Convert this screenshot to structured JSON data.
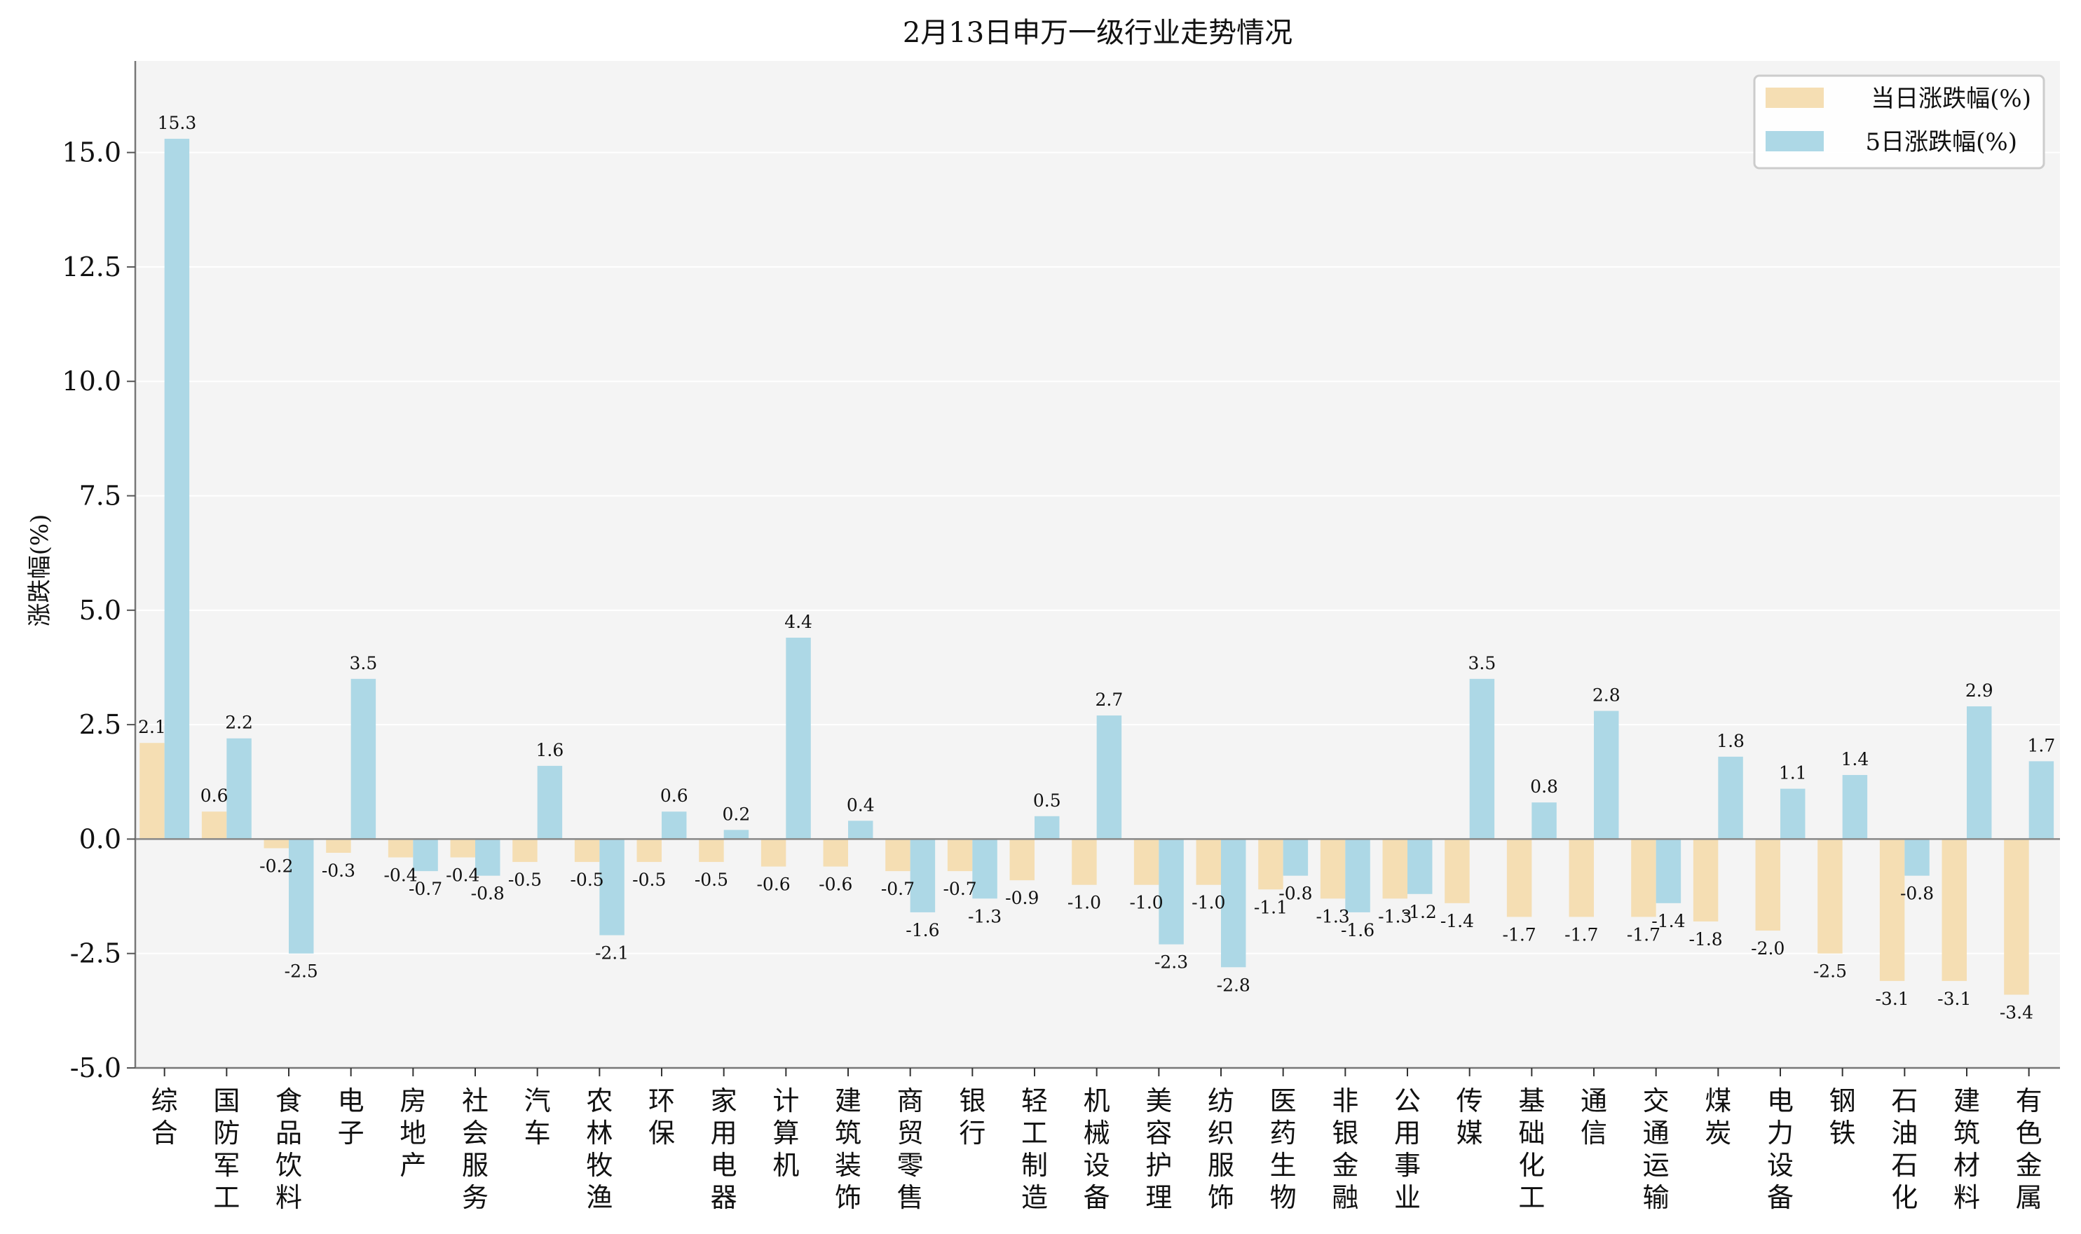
{
  "chart_data": {
    "type": "bar",
    "title": "2月13日申万一级行业走势情况",
    "xlabel": "",
    "ylabel": "涨跌幅(%)",
    "ylim": [
      -5,
      17
    ],
    "yticks": [
      "-5.0",
      "-2.5",
      "0.0",
      "2.5",
      "5.0",
      "7.5",
      "10.0",
      "12.5",
      "15.0"
    ],
    "grid": true,
    "legend_position": "top-right",
    "categories": [
      "综合",
      "国防军工",
      "食品饮料",
      "电子",
      "房地产",
      "社会服务",
      "汽车",
      "农林牧渔",
      "环保",
      "家用电器",
      "计算机",
      "建筑装饰",
      "商贸零售",
      "银行",
      "轻工制造",
      "机械设备",
      "美容护理",
      "纺织服饰",
      "医药生物",
      "非银金融",
      "公用事业",
      "传媒",
      "基础化工",
      "通信",
      "交通运输",
      "煤炭",
      "电力设备",
      "钢铁",
      "石油石化",
      "建筑材料",
      "有色金属"
    ],
    "series": [
      {
        "name": "当日涨跌幅(%)",
        "color": "#f5deb3",
        "values": [
          2.1,
          0.6,
          -0.2,
          -0.3,
          -0.4,
          -0.4,
          -0.5,
          -0.5,
          -0.5,
          -0.5,
          -0.6,
          -0.6,
          -0.7,
          -0.7,
          -0.9,
          -1.0,
          -1.0,
          -1.0,
          -1.1,
          -1.3,
          -1.3,
          -1.4,
          -1.7,
          -1.7,
          -1.7,
          -1.8,
          -2.0,
          -2.5,
          -3.1,
          -3.1,
          -3.4
        ]
      },
      {
        "name": "5日涨跌幅(%)",
        "color": "#add8e6",
        "values": [
          15.3,
          2.2,
          -2.5,
          3.5,
          -0.7,
          -0.8,
          1.6,
          -2.1,
          0.6,
          0.2,
          4.4,
          0.4,
          -1.6,
          -1.3,
          0.5,
          2.7,
          -2.3,
          -2.8,
          -0.8,
          -1.6,
          -1.2,
          3.5,
          0.8,
          2.8,
          -1.4,
          1.8,
          1.1,
          1.4,
          -0.8,
          2.9,
          1.7
        ]
      }
    ],
    "background_color": "#f4f4f4"
  }
}
